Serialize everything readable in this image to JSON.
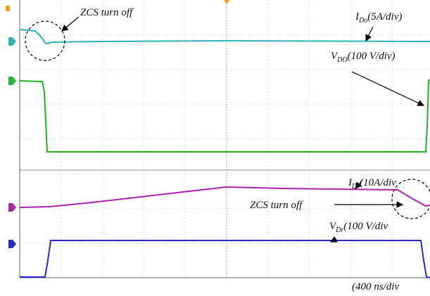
{
  "annotations": {
    "zcs_top": "ZCS turn off",
    "i_do": {
      "main": "I",
      "sub": "Do",
      "rest": "(5A/div)"
    },
    "v_do": {
      "main": "V",
      "sub": "DO",
      "rest": "(100 V/div)"
    },
    "i_dr": {
      "main": "I",
      "sub": "Dr",
      "rest": "(10A/div"
    },
    "zcs_bottom": "ZCS turn off",
    "v_dr": {
      "main": "V",
      "sub": "Dr",
      "rest": "(100 V/div"
    },
    "timebase": "(400 ns/div"
  }
}
